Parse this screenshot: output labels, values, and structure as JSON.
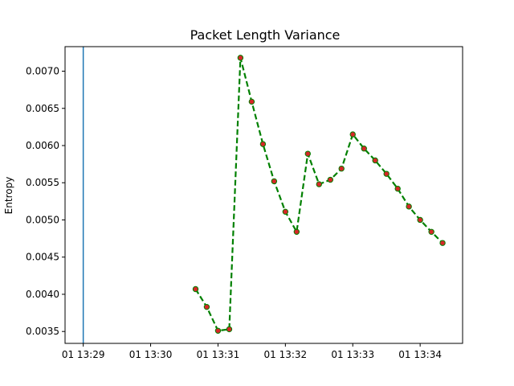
{
  "chart_data": {
    "type": "line",
    "title": "Packet Length Variance",
    "xlabel": "",
    "ylabel": "Entropy",
    "x_ticks": [
      {
        "value": 0,
        "label": "01 13:29"
      },
      {
        "value": 1,
        "label": "01 13:30"
      },
      {
        "value": 2,
        "label": "01 13:31"
      },
      {
        "value": 3,
        "label": "01 13:32"
      },
      {
        "value": 4,
        "label": "01 13:33"
      },
      {
        "value": 5,
        "label": "01 13:34"
      }
    ],
    "y_ticks": [
      {
        "value": 0.0035,
        "label": "0.0035"
      },
      {
        "value": 0.004,
        "label": "0.0040"
      },
      {
        "value": 0.0045,
        "label": "0.0045"
      },
      {
        "value": 0.005,
        "label": "0.0050"
      },
      {
        "value": 0.0055,
        "label": "0.0055"
      },
      {
        "value": 0.006,
        "label": "0.0060"
      },
      {
        "value": 0.0065,
        "label": "0.0065"
      },
      {
        "value": 0.007,
        "label": "0.0070"
      }
    ],
    "xlim": [
      -0.27,
      5.63
    ],
    "ylim": [
      0.00334,
      0.00733
    ],
    "grid": false,
    "vertical_line": {
      "x": 0,
      "color": "#1f77b4"
    },
    "series": [
      {
        "line_color": "#008000",
        "marker_color": "#d62728",
        "line_style": "dashed",
        "x": [
          1.667,
          1.833,
          2.0,
          2.167,
          2.333,
          2.5,
          2.667,
          2.833,
          3.0,
          3.167,
          3.333,
          3.5,
          3.667,
          3.833,
          4.0,
          4.167,
          4.333,
          4.5,
          4.667,
          4.833,
          5.0,
          5.167,
          5.333
        ],
        "y": [
          0.00407,
          0.00383,
          0.00351,
          0.00353,
          0.00718,
          0.00659,
          0.00602,
          0.00552,
          0.00511,
          0.00484,
          0.00589,
          0.00548,
          0.00554,
          0.00569,
          0.00615,
          0.00596,
          0.0058,
          0.00562,
          0.00542,
          0.00518,
          0.005,
          0.00484,
          0.00469
        ]
      }
    ]
  }
}
